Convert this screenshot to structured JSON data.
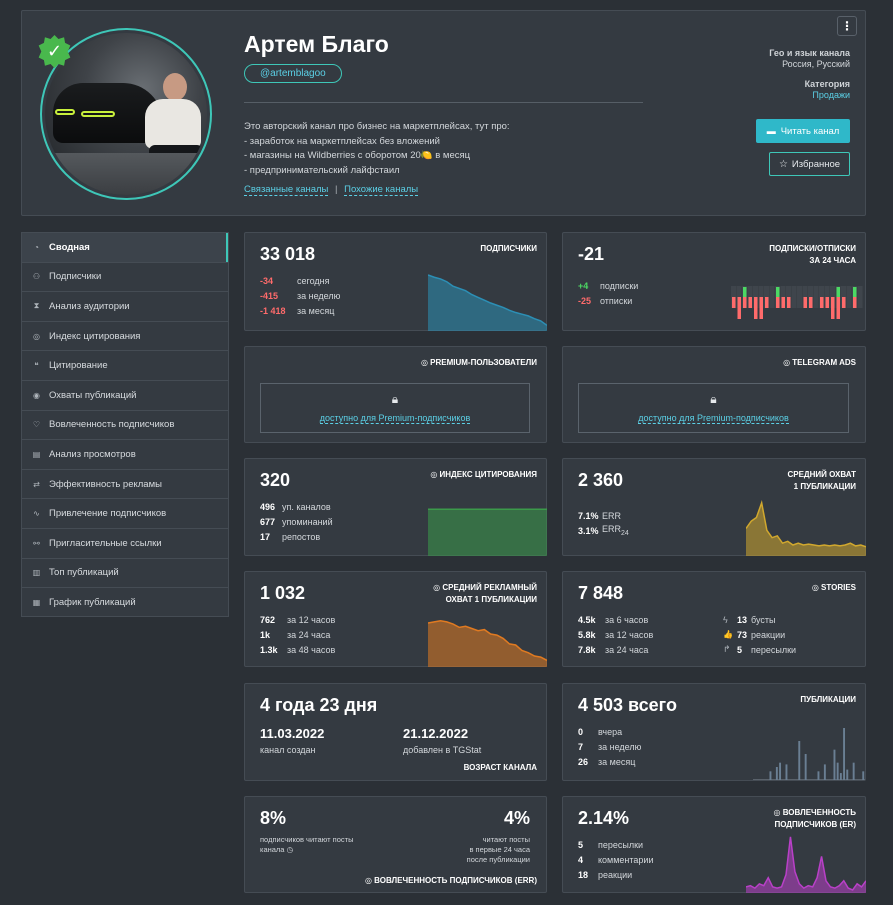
{
  "profile": {
    "name": "Артем Благо",
    "handle": "@artemblagoo",
    "description": [
      "Это авторский канал про бизнес на маркетплейсах, тут про:",
      "- заработок на маркетплейсах без вложений",
      "- магазины на Wildberries с оборотом 20🍋 в месяц",
      "- предпринимательский лайфстаил"
    ],
    "link_related": "Связанные каналы",
    "link_similar": "Похожие каналы",
    "link_sep": "|",
    "geo_label": "Гео и язык канала",
    "geo_value": "Россия, Русский",
    "category_label": "Категория",
    "category_value": "Продажи",
    "read_button": "Читать канал",
    "fav_button": "Избранное",
    "kebab": "⋮"
  },
  "sidebar": {
    "items": [
      {
        "label": "Сводная",
        "icon": "◔"
      },
      {
        "label": "Подписчики",
        "icon": "⚇"
      },
      {
        "label": "Анализ аудитории",
        "icon": "⧗"
      },
      {
        "label": "Индекс цитирования",
        "icon": "◎"
      },
      {
        "label": "Цитирование",
        "icon": "❝"
      },
      {
        "label": "Охваты публикаций",
        "icon": "◉"
      },
      {
        "label": "Вовлеченность подписчиков",
        "icon": "♡"
      },
      {
        "label": "Анализ просмотров",
        "icon": "▤"
      },
      {
        "label": "Эффективность рекламы",
        "icon": "⇄"
      },
      {
        "label": "Привлечение подписчиков",
        "icon": "∿"
      },
      {
        "label": "Пригласительные ссылки",
        "icon": "⚯"
      },
      {
        "label": "Топ публикаций",
        "icon": "▥"
      },
      {
        "label": "График публикаций",
        "icon": "▦"
      }
    ]
  },
  "subs": {
    "value": "33 018",
    "title": "ПОДПИСЧИКИ",
    "rows": [
      {
        "n": "-34",
        "l": "сегодня"
      },
      {
        "n": "-415",
        "l": "за неделю"
      },
      {
        "n": "-1 418",
        "l": "за месяц"
      }
    ]
  },
  "subs24": {
    "value": "-21",
    "title1": "ПОДПИСКИ/ОТПИСКИ",
    "title2": "ЗА 24 ЧАСА",
    "rows": [
      {
        "n": "+4",
        "l": "подписки"
      },
      {
        "n": "-25",
        "l": "отписки"
      }
    ]
  },
  "premium": {
    "title": "PREMIUM-ПОЛЬЗОВАТЕЛИ",
    "text": "доступно для Premium-подписчиков"
  },
  "ads": {
    "title": "TELEGRAM ADS",
    "text": "доступно для Premium-подписчиков"
  },
  "citation": {
    "value": "320",
    "title": "ИНДЕКС ЦИТИРОВАНИЯ",
    "rows": [
      {
        "n": "496",
        "l": "уп. каналов"
      },
      {
        "n": "677",
        "l": "упоминаний"
      },
      {
        "n": "17",
        "l": "репостов"
      }
    ]
  },
  "reach": {
    "value": "2 360",
    "title1": "СРЕДНИЙ ОХВАТ",
    "title2": "1 ПУБЛИКАЦИИ",
    "err": "7.1%",
    "err_label": "ERR",
    "err24": "3.1%",
    "err24_label": "ERR",
    "err24_sub": "24"
  },
  "adreach": {
    "value": "1 032",
    "title1": "СРЕДНИЙ РЕКЛАМНЫЙ",
    "title2": "ОХВАТ 1 ПУБЛИКАЦИИ",
    "rows": [
      {
        "n": "762",
        "l": "за 12 часов"
      },
      {
        "n": "1k",
        "l": "за 24 часа"
      },
      {
        "n": "1.3k",
        "l": "за 48 часов"
      }
    ]
  },
  "stories": {
    "value": "7 848",
    "title": "STORIES",
    "rows": [
      {
        "n": "4.5k",
        "l": "за 6 часов"
      },
      {
        "n": "5.8k",
        "l": "за 12 часов"
      },
      {
        "n": "7.8k",
        "l": "за 24 часа"
      }
    ],
    "rows2": [
      {
        "icon": "ϟ",
        "n": "13",
        "l": "бусты"
      },
      {
        "icon": "👍",
        "n": "73",
        "l": "реакции"
      },
      {
        "icon": "↱",
        "n": "5",
        "l": "пересылки"
      }
    ]
  },
  "age": {
    "value": "4 года 23 дня",
    "created": "11.03.2022",
    "created_label": "канал создан",
    "added": "21.12.2022",
    "added_label": "добавлен в TGStat",
    "title": "ВОЗРАСТ КАНАЛА"
  },
  "posts": {
    "value": "4 503 всего",
    "title": "ПУБЛИКАЦИИ",
    "rows": [
      {
        "n": "0",
        "l": "вчера"
      },
      {
        "n": "7",
        "l": "за неделю"
      },
      {
        "n": "26",
        "l": "за месяц"
      }
    ]
  },
  "err": {
    "left_value": "8%",
    "left_text": "подписчиков читают посты канала",
    "right_value": "4%",
    "right_text1": "читают посты",
    "right_text2": "в первые 24 часа",
    "right_text3": "после публикации",
    "title": "ВОВЛЕЧЕННОСТЬ ПОДПИСЧИКОВ (ERR)"
  },
  "er": {
    "value": "2.14%",
    "title1": "ВОВЛЕЧЕННОСТЬ",
    "title2": "ПОДПИСЧИКОВ (ER)",
    "rows": [
      {
        "n": "5",
        "l": "пересылки"
      },
      {
        "n": "4",
        "l": "комментарии"
      },
      {
        "n": "18",
        "l": "реакции"
      }
    ]
  },
  "colors": {
    "accent": "#3ec7b8",
    "link": "#5bd0e6",
    "red": "#ff6b6b",
    "green": "#4cd964",
    "blue_chart": "#2c8fb5",
    "green_chart": "#3b9a4a",
    "yellow_chart": "#d1a82e",
    "orange_chart": "#e07a21",
    "purple_chart": "#b940c8"
  },
  "chart_data": [
    {
      "type": "area",
      "series": [
        {
          "values": [
            100,
            96,
            93,
            88,
            80,
            76,
            72,
            65,
            60,
            55,
            50,
            46,
            42,
            37,
            33,
            30,
            27,
            22,
            18,
            10
          ]
        }
      ]
    },
    {
      "type": "bar",
      "series": [
        {
          "name": "подписки",
          "values": [
            0,
            0,
            1,
            0,
            0,
            0,
            0,
            0,
            1,
            0,
            0,
            0,
            0,
            0,
            0,
            0,
            0,
            0,
            0,
            1,
            0,
            0,
            1,
            0
          ]
        },
        {
          "name": "отписки",
          "values": [
            1,
            2,
            1,
            1,
            2,
            2,
            1,
            0,
            1,
            1,
            1,
            0,
            0,
            1,
            1,
            0,
            1,
            1,
            2,
            2,
            1,
            0,
            1,
            0
          ]
        }
      ]
    },
    {
      "type": "area",
      "series": [
        {
          "values": [
            85,
            85,
            85,
            85,
            85,
            85,
            85,
            85,
            85,
            85,
            85
          ]
        }
      ]
    },
    {
      "type": "area",
      "series": [
        {
          "values": [
            30,
            38,
            42,
            58,
            28,
            20,
            22,
            14,
            16,
            12,
            14,
            12,
            13,
            12,
            11,
            12,
            11,
            12,
            11,
            12,
            14,
            11,
            12,
            10
          ]
        }
      ]
    },
    {
      "type": "area",
      "series": [
        {
          "values": [
            80,
            82,
            84,
            82,
            78,
            72,
            74,
            70,
            66,
            68,
            60,
            58,
            52,
            42,
            40,
            30,
            26,
            20,
            18,
            12
          ]
        }
      ]
    },
    {
      "type": "bar",
      "series": [
        {
          "values": [
            0,
            0,
            0,
            0,
            0,
            10,
            0,
            15,
            20,
            0,
            18,
            0,
            0,
            0,
            45,
            0,
            30,
            0,
            0,
            0,
            10,
            0,
            18,
            0,
            0,
            35,
            20,
            8,
            60,
            12,
            0,
            20,
            0,
            0,
            10
          ]
        }
      ]
    },
    {
      "type": "area",
      "series": [
        {
          "values": [
            10,
            12,
            8,
            15,
            12,
            25,
            10,
            8,
            10,
            30,
            92,
            35,
            15,
            8,
            12,
            10,
            25,
            60,
            20,
            10,
            8,
            12,
            20,
            8,
            5,
            15,
            10,
            20
          ]
        }
      ]
    }
  ]
}
